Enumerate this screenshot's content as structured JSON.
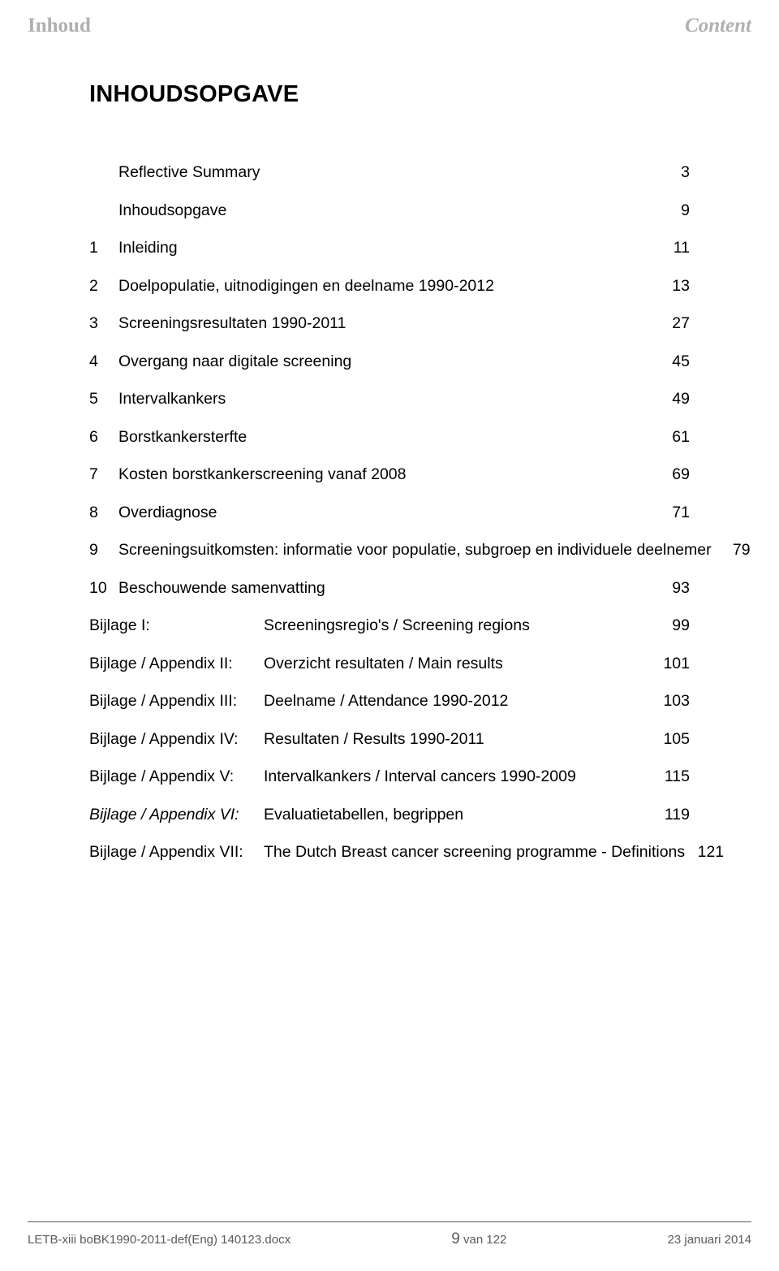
{
  "running_head": {
    "left": "Inhoud",
    "right": "Content"
  },
  "title": "INHOUDSOPGAVE",
  "toc": {
    "items": [
      {
        "num": "",
        "label": "Reflective Summary",
        "page": "3"
      },
      {
        "num": "",
        "label": "Inhoudsopgave",
        "page": "9"
      },
      {
        "num": "1",
        "label": "Inleiding",
        "page": "11"
      },
      {
        "num": "2",
        "label": "Doelpopulatie, uitnodigingen en deelname 1990-2012",
        "page": "13"
      },
      {
        "num": "3",
        "label": "Screeningsresultaten 1990-2011",
        "page": "27"
      },
      {
        "num": "4",
        "label": "Overgang naar digitale screening",
        "page": "45"
      },
      {
        "num": "5",
        "label": "Intervalkankers",
        "page": "49"
      },
      {
        "num": "6",
        "label": "Borstkankersterfte",
        "page": "61"
      },
      {
        "num": "7",
        "label": "Kosten borstkankerscreening vanaf 2008",
        "page": "69"
      },
      {
        "num": "8",
        "label": "Overdiagnose",
        "page": "71"
      },
      {
        "num": "9",
        "label": "Screeningsuitkomsten: informatie voor populatie, subgroep en individuele deelnemer",
        "page": "79"
      },
      {
        "num": "10",
        "label": "Beschouwende samenvatting",
        "page": "93"
      }
    ],
    "appendices": [
      {
        "left": "Bijlage I:",
        "left_italic": false,
        "right": "Screeningsregio's / Screening regions",
        "page": "99"
      },
      {
        "left": "Bijlage / Appendix II:",
        "left_italic": false,
        "right": "Overzicht resultaten / Main results",
        "page": "101"
      },
      {
        "left": "Bijlage / Appendix III:",
        "left_italic": false,
        "right": "Deelname / Attendance  1990-2012",
        "page": "103"
      },
      {
        "left": "Bijlage / Appendix IV:",
        "left_italic": false,
        "right": "Resultaten / Results 1990-2011",
        "page": "105"
      },
      {
        "left": "Bijlage / Appendix V:",
        "left_italic": false,
        "right": "Intervalkankers / Interval cancers 1990-2009",
        "page": "115"
      },
      {
        "left": "Bijlage / Appendix VI:",
        "left_italic": true,
        "right": "Evaluatietabellen, begrippen",
        "page": "119"
      },
      {
        "left": "Bijlage / Appendix VII:",
        "left_italic": false,
        "right": "The Dutch Breast cancer screening programme   -   Definitions",
        "page": "121"
      }
    ]
  },
  "footer": {
    "left": "LETB-xiii boBK1990-2011-def(Eng) 140123.docx",
    "center_page": "9",
    "center_sep": " van ",
    "center_total": "122",
    "right": "23 januari 2014"
  },
  "colors": {
    "text": "#000000",
    "muted": "#b0b0b0",
    "footer_text": "#5b5b5b",
    "background": "#ffffff",
    "rule": "#5b5b5b"
  },
  "typography": {
    "body_font": "Arial",
    "running_head_font": "Georgia",
    "title_size_pt": 22,
    "toc_size_pt": 14.5,
    "running_head_size_pt": 19,
    "footer_size_pt": 11
  }
}
